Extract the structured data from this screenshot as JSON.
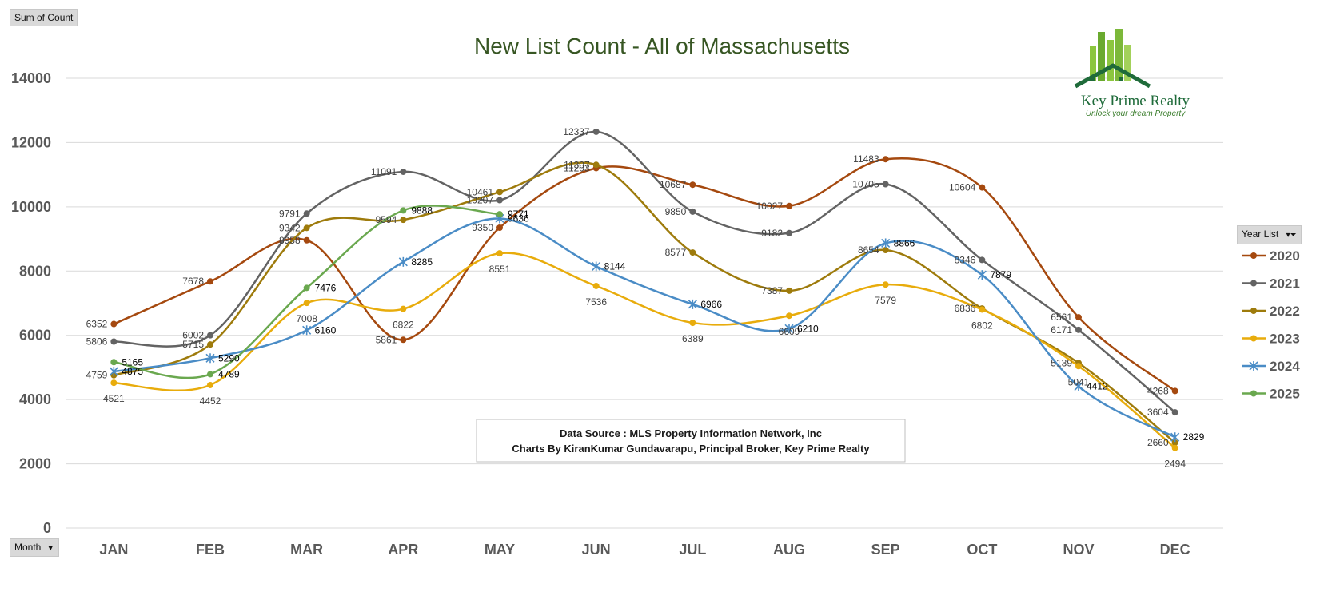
{
  "pivot": {
    "value_field": "Sum of Count",
    "legend_field": "Year List",
    "axis_field": "Month"
  },
  "source_box": {
    "line1": "Data Source : MLS Property Information Network, Inc",
    "line2": "Charts By KiranKumar Gundavarapu, Principal Broker, Key Prime Realty"
  },
  "logo": {
    "name": "Key Prime Realty",
    "tagline": "Unlock your dream Property"
  },
  "chart_data": {
    "type": "line",
    "title": "New List Count - All of Massachusetts",
    "xlabel": "",
    "ylabel": "",
    "ylim": [
      0,
      14000
    ],
    "yticks": [
      0,
      2000,
      4000,
      6000,
      8000,
      10000,
      12000,
      14000
    ],
    "grid": true,
    "legend_position": "right",
    "categories": [
      "JAN",
      "FEB",
      "MAR",
      "APR",
      "MAY",
      "JUN",
      "JUL",
      "AUG",
      "SEP",
      "OCT",
      "NOV",
      "DEC"
    ],
    "series": [
      {
        "name": "2020",
        "color": "#a5490f",
        "marker": "circle",
        "values": [
          6352,
          7678,
          8958,
          5861,
          9350,
          11203,
          10687,
          10027,
          11483,
          10604,
          6561,
          4268
        ]
      },
      {
        "name": "2021",
        "color": "#636363",
        "marker": "circle",
        "values": [
          5806,
          6002,
          9791,
          11091,
          10207,
          12337,
          9850,
          9182,
          10705,
          8346,
          6171,
          3604
        ]
      },
      {
        "name": "2022",
        "color": "#9e7b0c",
        "marker": "circle",
        "values": [
          4759,
          5715,
          9342,
          9594,
          10461,
          11307,
          8577,
          7387,
          8654,
          6836,
          5139,
          2660
        ]
      },
      {
        "name": "2023",
        "color": "#e8ac0c",
        "marker": "circle",
        "values": [
          4521,
          4452,
          7008,
          6822,
          8551,
          7536,
          6389,
          6609,
          7579,
          6802,
          5041,
          2494
        ]
      },
      {
        "name": "2024",
        "color": "#4a8cc6",
        "marker": "star",
        "values": [
          4875,
          5290,
          6160,
          8285,
          9636,
          8144,
          6966,
          6210,
          8866,
          7879,
          4412,
          2829
        ]
      },
      {
        "name": "2025",
        "color": "#6aa84f",
        "marker": "circle",
        "values": [
          5165,
          4789,
          7476,
          9888,
          9771,
          null,
          null,
          null,
          null,
          null,
          null,
          null
        ]
      }
    ]
  }
}
